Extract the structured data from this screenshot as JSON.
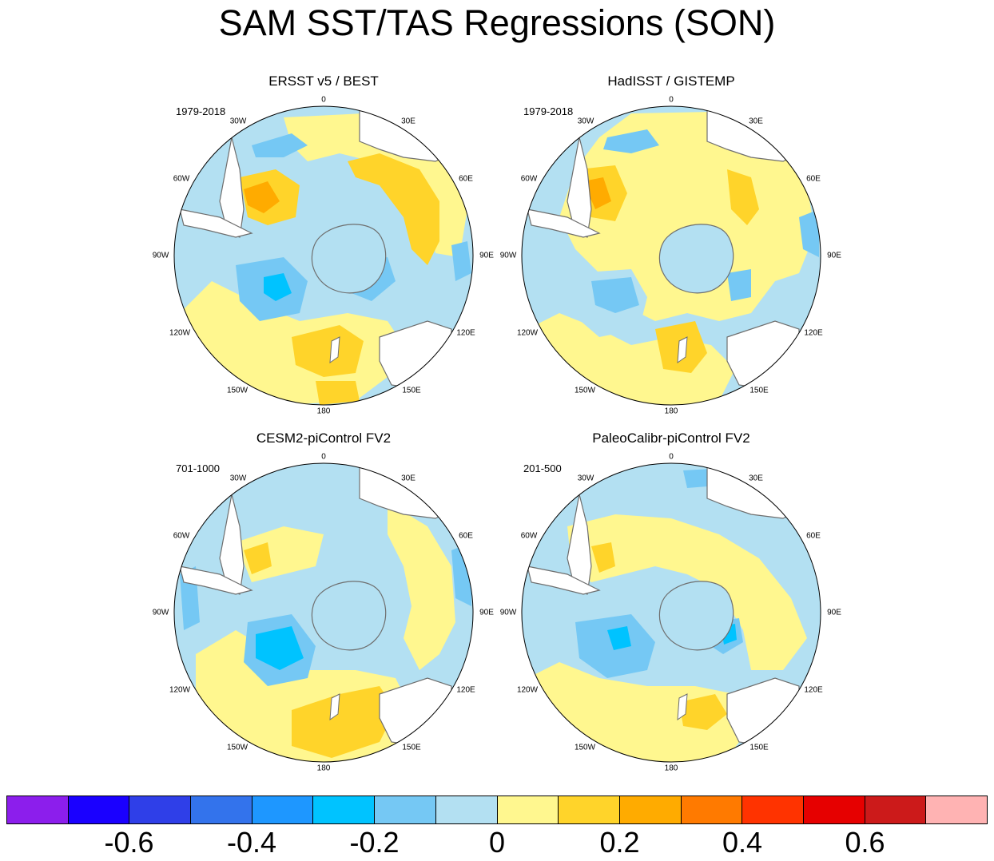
{
  "title": "SAM SST/TAS Regressions (SON)",
  "panels": [
    {
      "title": "ERSST v5 / BEST",
      "period": "1979-2018"
    },
    {
      "title": "HadISST / GISTEMP",
      "period": "1979-2018"
    },
    {
      "title": "CESM2-piControl FV2",
      "period": "701-1000"
    },
    {
      "title": "PaleoCalibr-piControl FV2",
      "period": "201-500"
    }
  ],
  "lon_labels": [
    "0",
    "30E",
    "60E",
    "90E",
    "120E",
    "150E",
    "180",
    "150W",
    "120W",
    "90W",
    "60W",
    "30W"
  ],
  "colorbar": {
    "colors": [
      "#8c1eec",
      "#1a00ff",
      "#2f3fe8",
      "#3373ec",
      "#1e97ff",
      "#00c3ff",
      "#75c8f4",
      "#b3e0f2",
      "#fff78f",
      "#ffd42a",
      "#ffab00",
      "#ff7a00",
      "#ff3300",
      "#e60000",
      "#cc1a1a",
      "#ffb3b3"
    ],
    "labels": [
      "-0.6",
      "-0.4",
      "-0.2",
      "0",
      "0.2",
      "0.4",
      "0.6"
    ],
    "label_values": [
      -0.6,
      -0.4,
      -0.2,
      0,
      0.2,
      0.4,
      0.6
    ],
    "min": -0.8,
    "max": 0.8
  },
  "palette": {
    "land": "#ffffff",
    "coast": "#6e6e6e",
    "blue_light": "#b3e0f2",
    "blue_mid": "#75c8f4",
    "blue_strong": "#00c3ff",
    "yellow": "#fff78f",
    "gold": "#ffd42a",
    "orange": "#ffab00"
  }
}
